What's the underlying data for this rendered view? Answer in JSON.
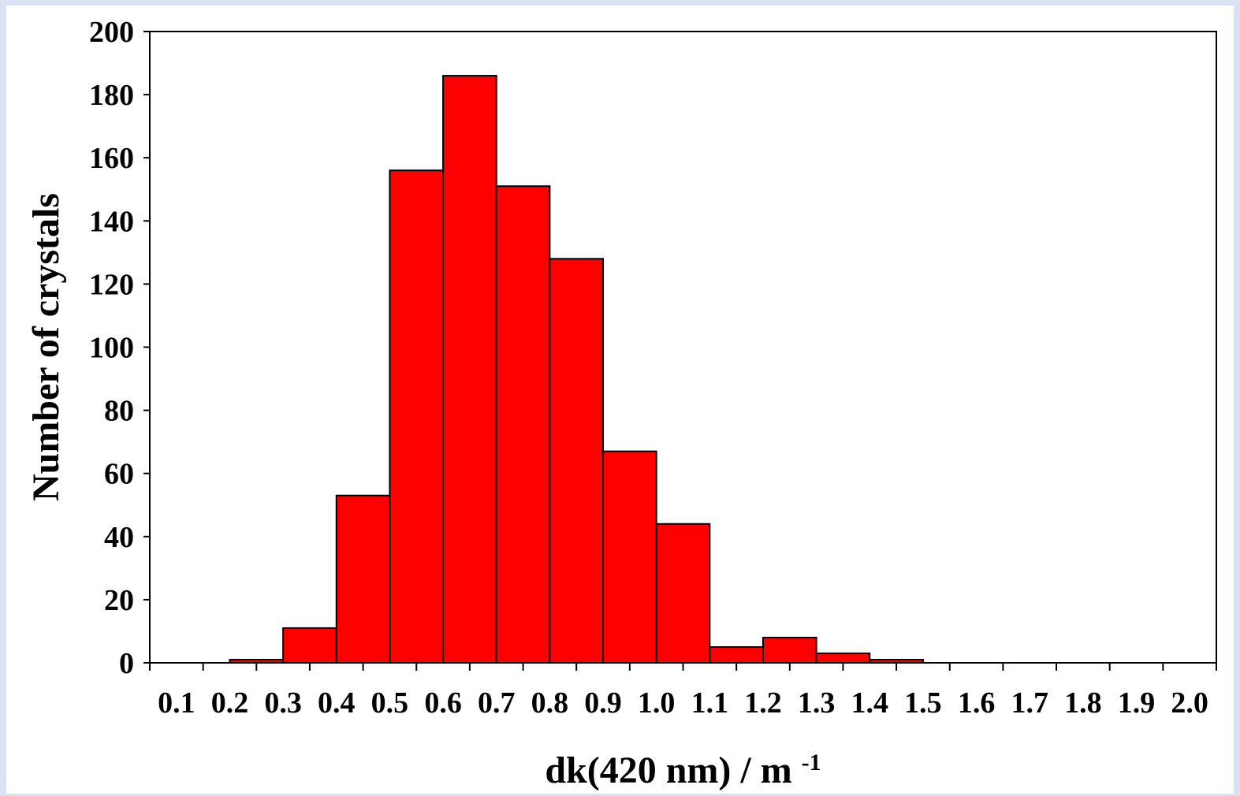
{
  "colors": {
    "background": "#d9e2f3",
    "plot_background": "#ffffff",
    "bar_fill": "#ff0000",
    "bar_stroke": "#000000"
  },
  "chart_data": {
    "type": "bar",
    "title": "",
    "xlabel": {
      "main": "dk(420 nm) / m",
      "superscript": "-1"
    },
    "ylabel": "Number of crystals",
    "categories": [
      "0.1",
      "0.2",
      "0.3",
      "0.4",
      "0.5",
      "0.6",
      "0.7",
      "0.8",
      "0.9",
      "1.0",
      "1.1",
      "1.2",
      "1.3",
      "1.4",
      "1.5",
      "1.6",
      "1.7",
      "1.8",
      "1.9",
      "2.0"
    ],
    "values": [
      0,
      0,
      1,
      11,
      53,
      156,
      186,
      151,
      128,
      67,
      44,
      5,
      8,
      3,
      1,
      0,
      0,
      0,
      0,
      0
    ],
    "ylim": [
      0,
      200
    ],
    "yticks": [
      0,
      20,
      40,
      60,
      80,
      100,
      120,
      140,
      160,
      180,
      200
    ],
    "grid": false,
    "legend": "none"
  }
}
